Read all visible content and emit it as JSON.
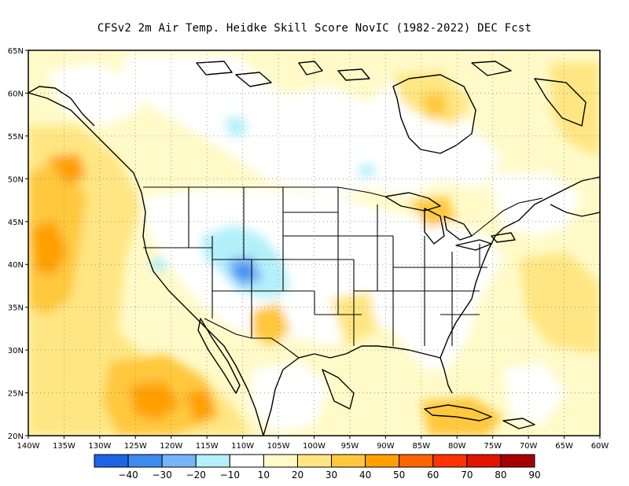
{
  "title": "CFSv2  2m Air Temp. Heidke Skill Score NovIC (1982-2022) DEC Fcst",
  "latitude_labels": [
    "65N",
    "60N",
    "55N",
    "50N",
    "45N",
    "40N",
    "35N",
    "30N",
    "25N",
    "20N"
  ],
  "longitude_labels": [
    "140W",
    "135W",
    "130W",
    "125W",
    "120W",
    "115W",
    "110W",
    "105W",
    "100W",
    "95W",
    "90W",
    "85W",
    "80W",
    "75W",
    "70W",
    "65W",
    "60W"
  ],
  "colorbar": {
    "colors": [
      "#1e64e6",
      "#3c8cf0",
      "#78b4fa",
      "#b4f0fa",
      "#ffffff",
      "#fffac8",
      "#ffe682",
      "#ffc83c",
      "#ffa000",
      "#ff6400",
      "#ff3200",
      "#e11400",
      "#a50000"
    ],
    "labels": [
      "−40",
      "−30",
      "−20",
      "−10",
      "10",
      "20",
      "30",
      "40",
      "50",
      "60",
      "70",
      "80",
      "90"
    ]
  },
  "map": {
    "region": "North America",
    "lon_range": [
      -140,
      -60
    ],
    "lat_range": [
      20,
      65
    ],
    "grid": "dotted"
  }
}
